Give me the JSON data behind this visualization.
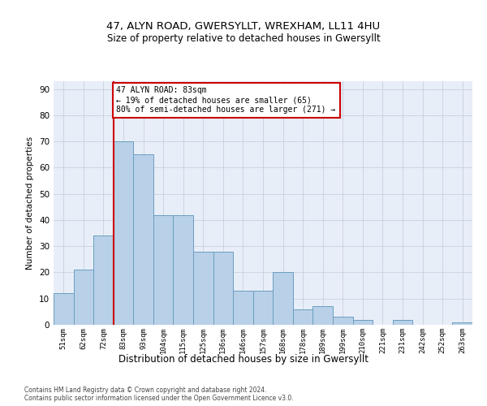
{
  "title": "47, ALYN ROAD, GWERSYLLT, WREXHAM, LL11 4HU",
  "subtitle": "Size of property relative to detached houses in Gwersyllt",
  "xlabel": "Distribution of detached houses by size in Gwersyllt",
  "ylabel": "Number of detached properties",
  "categories": [
    "51sqm",
    "62sqm",
    "72sqm",
    "83sqm",
    "93sqm",
    "104sqm",
    "115sqm",
    "125sqm",
    "136sqm",
    "146sqm",
    "157sqm",
    "168sqm",
    "178sqm",
    "189sqm",
    "199sqm",
    "210sqm",
    "221sqm",
    "231sqm",
    "242sqm",
    "252sqm",
    "263sqm"
  ],
  "values": [
    12,
    21,
    34,
    70,
    65,
    42,
    42,
    28,
    28,
    13,
    13,
    20,
    6,
    7,
    3,
    2,
    0,
    2,
    0,
    0,
    1
  ],
  "bar_color": "#b8d0e8",
  "bar_edge_color": "#6a9fc0",
  "vline_index": 3,
  "vline_color": "#cc0000",
  "annotation_line1": "47 ALYN ROAD: 83sqm",
  "annotation_line2": "← 19% of detached houses are smaller (65)",
  "annotation_line3": "80% of semi-detached houses are larger (271) →",
  "annotation_box_facecolor": "#ffffff",
  "annotation_box_edgecolor": "#cc0000",
  "ylim": [
    0,
    93
  ],
  "yticks": [
    0,
    10,
    20,
    30,
    40,
    50,
    60,
    70,
    80,
    90
  ],
  "grid_color": "#c8d0e0",
  "background_color": "#e8eef8",
  "footer_line1": "Contains HM Land Registry data © Crown copyright and database right 2024.",
  "footer_line2": "Contains public sector information licensed under the Open Government Licence v3.0."
}
